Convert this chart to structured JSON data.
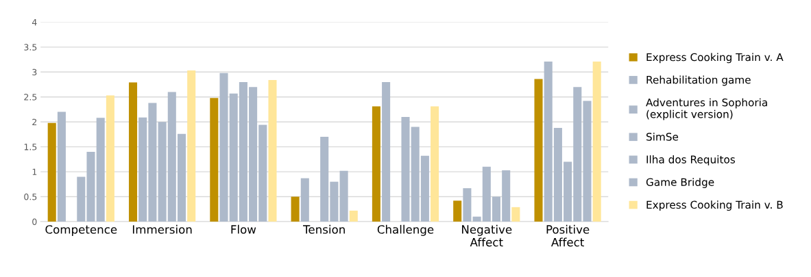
{
  "chart_data": {
    "type": "bar",
    "categories": [
      "Competence",
      "Immersion",
      "Flow",
      "Tension",
      "Challenge",
      "Negative\nAffect",
      "Positive\nAffect"
    ],
    "series": [
      {
        "name": "Express Cooking Train v. A",
        "color": "#bf9000",
        "values": [
          1.98,
          2.79,
          2.48,
          0.5,
          2.31,
          0.42,
          2.86
        ]
      },
      {
        "name": "Rehabilitation game",
        "color": "#adb9ca",
        "values": [
          2.2,
          2.09,
          2.98,
          0.87,
          2.8,
          0.67,
          3.21
        ]
      },
      {
        "name": "Adventures in Sophoria\n(explicit version)",
        "color": "#adb9ca",
        "values": [
          null,
          2.38,
          2.57,
          null,
          null,
          0.1,
          1.88
        ]
      },
      {
        "name": "SimSe",
        "color": "#adb9ca",
        "values": [
          0.9,
          2.0,
          2.8,
          1.7,
          2.1,
          1.1,
          1.2
        ]
      },
      {
        "name": "Ilha dos Requitos",
        "color": "#adb9ca",
        "values": [
          1.4,
          2.6,
          2.7,
          0.8,
          1.9,
          0.5,
          2.7
        ]
      },
      {
        "name": "Game Bridge",
        "color": "#adb9ca",
        "values": [
          2.08,
          1.76,
          1.94,
          1.02,
          1.32,
          1.03,
          2.42
        ]
      },
      {
        "name": "Express Cooking Train v. B",
        "color": "#ffe699",
        "values": [
          2.53,
          3.03,
          2.84,
          0.22,
          2.31,
          0.29,
          3.21
        ]
      }
    ],
    "ylim": [
      0,
      4
    ],
    "yticks": [
      0,
      0.5,
      1,
      1.5,
      2,
      2.5,
      3,
      3.5,
      4
    ],
    "grid": "y",
    "legend": "right"
  }
}
